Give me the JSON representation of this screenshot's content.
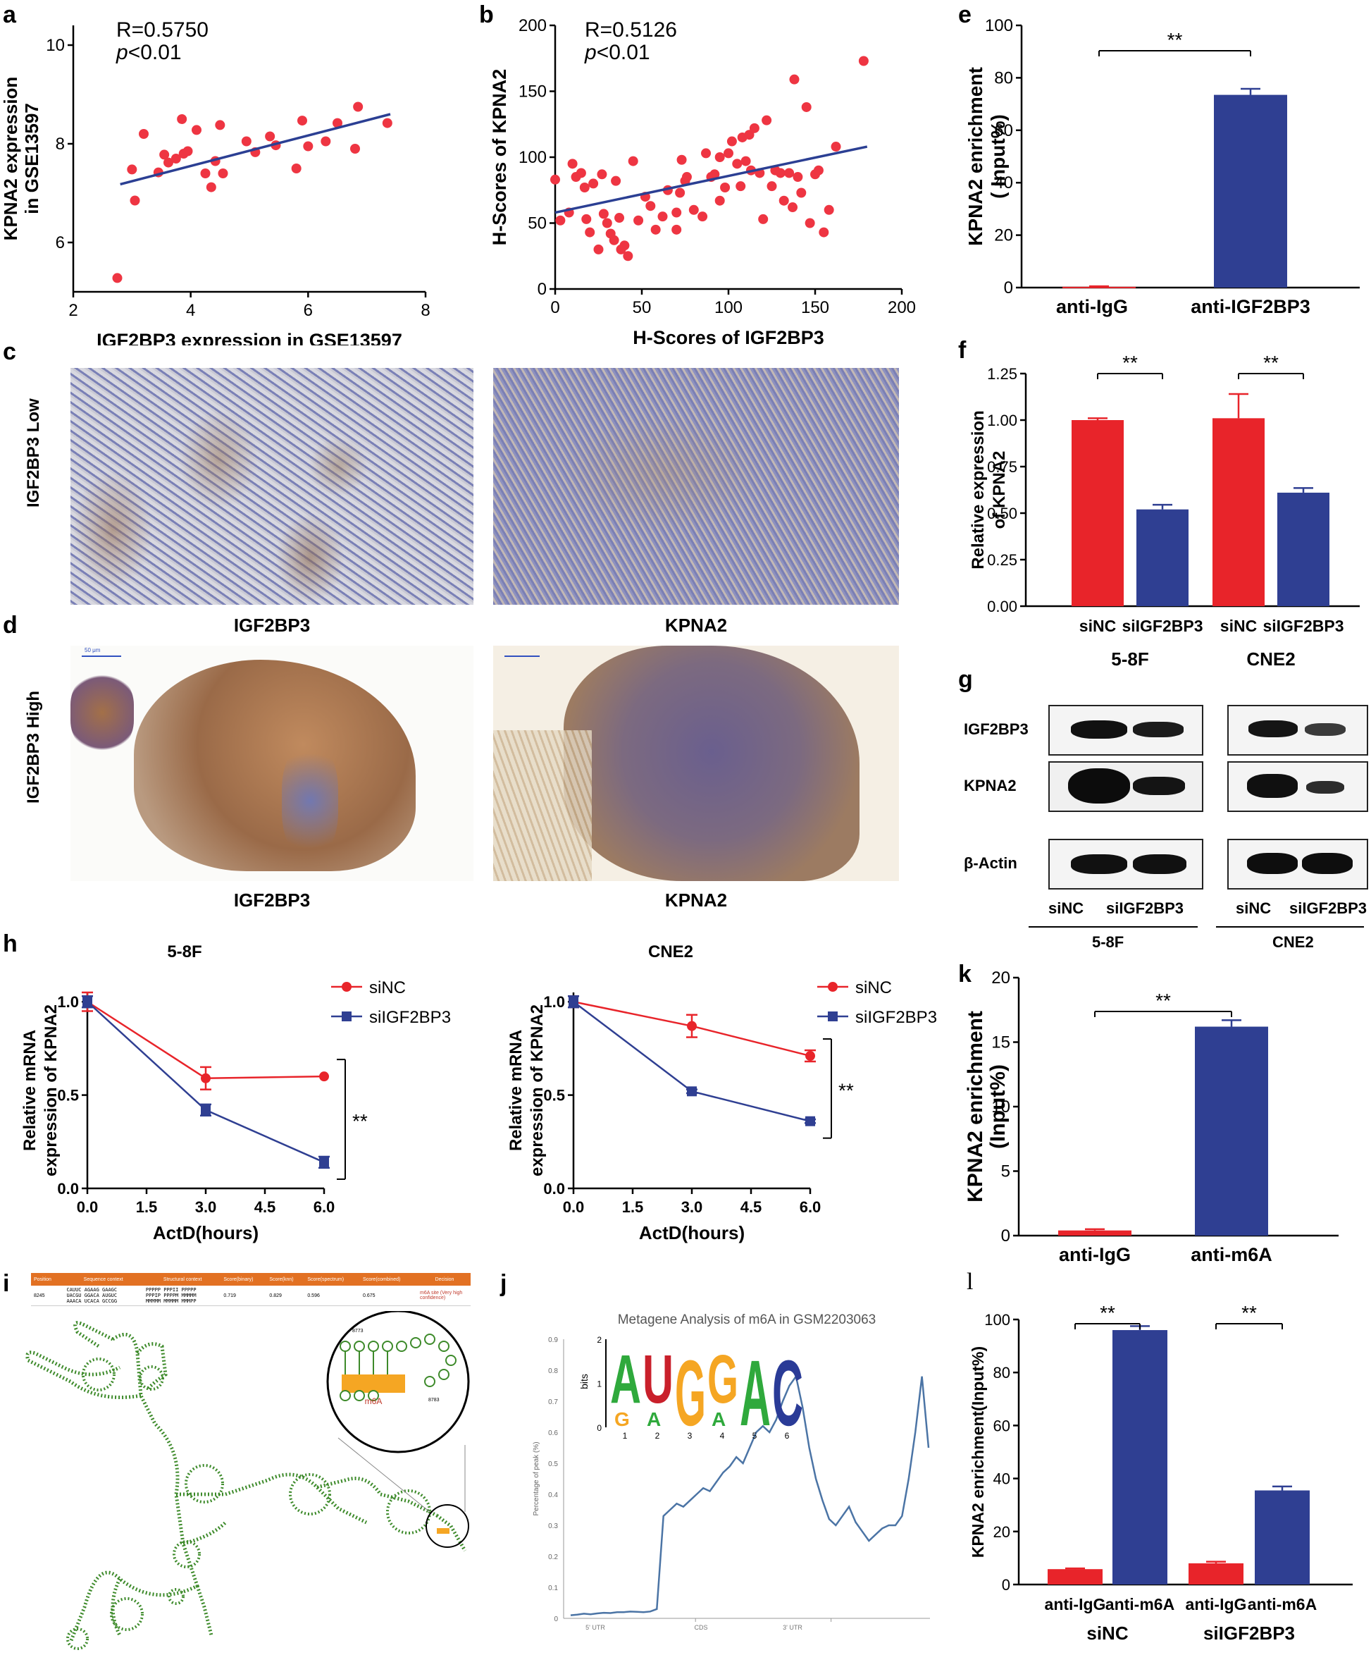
{
  "panels": {
    "a": "a",
    "b": "b",
    "c": "c",
    "d": "d",
    "e": "e",
    "f": "f",
    "g": "g",
    "h": "h",
    "i": "i",
    "j": "j",
    "k": "k",
    "l": "l"
  },
  "colors": {
    "red": "#e8242a",
    "blue": "#2f3f92",
    "dot_red": "#ee3542",
    "line_blue": "#2b3f93",
    "meta_line": "#4b74a5",
    "rna_green": "#3d8a2a"
  },
  "chart_data": [
    {
      "id": "a",
      "type": "scatter",
      "stat_r": "R=0.5750",
      "stat_p_italic": "p",
      "stat_p_rest": "<0.01",
      "xlabel": "IGF2BP3 expression in GSE13597",
      "ylabel_line1": "KPNA2 expression",
      "ylabel_line2": "in GSE13597",
      "xlim": [
        2,
        8
      ],
      "ylim": [
        5.0,
        10.4
      ],
      "xticks": [
        "2",
        "4",
        "6",
        "8"
      ],
      "yticks": [
        "6",
        "8",
        "10"
      ],
      "fit": {
        "x0": 2.8,
        "y0": 7.18,
        "x1": 7.4,
        "y1": 8.6
      },
      "points": [
        [
          2.75,
          5.28
        ],
        [
          3.0,
          7.48
        ],
        [
          3.05,
          6.85
        ],
        [
          3.2,
          8.2
        ],
        [
          3.45,
          7.42
        ],
        [
          3.55,
          7.78
        ],
        [
          3.62,
          7.62
        ],
        [
          3.75,
          7.7
        ],
        [
          3.85,
          8.5
        ],
        [
          3.88,
          7.8
        ],
        [
          3.95,
          7.85
        ],
        [
          4.1,
          8.28
        ],
        [
          4.25,
          7.4
        ],
        [
          4.35,
          7.12
        ],
        [
          4.42,
          7.65
        ],
        [
          4.5,
          8.38
        ],
        [
          4.55,
          7.4
        ],
        [
          4.95,
          8.05
        ],
        [
          5.1,
          7.83
        ],
        [
          5.35,
          8.15
        ],
        [
          5.45,
          7.97
        ],
        [
          5.8,
          7.5
        ],
        [
          5.9,
          8.47
        ],
        [
          6.0,
          7.95
        ],
        [
          6.3,
          8.05
        ],
        [
          6.5,
          8.42
        ],
        [
          6.8,
          7.9
        ],
        [
          6.85,
          8.75
        ],
        [
          7.35,
          8.42
        ]
      ]
    },
    {
      "id": "b",
      "type": "scatter",
      "stat_r": "R=0.5126",
      "stat_p_italic": "p",
      "stat_p_rest": "<0.01",
      "xlabel": "H-Scores of IGF2BP3",
      "ylabel_line1": "H-Scores of KPNA2",
      "ylabel_line2": "",
      "xlim": [
        0,
        200
      ],
      "ylim": [
        0,
        200
      ],
      "xticks": [
        "0",
        "50",
        "100",
        "150",
        "200"
      ],
      "yticks": [
        "0",
        "50",
        "100",
        "150",
        "200"
      ],
      "fit": {
        "x0": 0,
        "y0": 58,
        "x1": 180,
        "y1": 108
      },
      "points": [
        [
          0,
          83
        ],
        [
          3,
          52
        ],
        [
          8,
          58
        ],
        [
          10,
          95
        ],
        [
          12,
          85
        ],
        [
          15,
          88
        ],
        [
          17,
          77
        ],
        [
          18,
          53
        ],
        [
          20,
          43
        ],
        [
          22,
          80
        ],
        [
          25,
          30
        ],
        [
          27,
          87
        ],
        [
          28,
          57
        ],
        [
          30,
          50
        ],
        [
          32,
          42
        ],
        [
          34,
          37
        ],
        [
          35,
          82
        ],
        [
          37,
          54
        ],
        [
          38,
          30
        ],
        [
          40,
          33
        ],
        [
          42,
          25
        ],
        [
          45,
          97
        ],
        [
          48,
          52
        ],
        [
          52,
          70
        ],
        [
          55,
          63
        ],
        [
          58,
          45
        ],
        [
          62,
          55
        ],
        [
          65,
          75
        ],
        [
          70,
          58
        ],
        [
          70,
          45
        ],
        [
          72,
          73
        ],
        [
          73,
          98
        ],
        [
          75,
          82
        ],
        [
          76,
          85
        ],
        [
          80,
          60
        ],
        [
          85,
          55
        ],
        [
          87,
          103
        ],
        [
          90,
          85
        ],
        [
          92,
          87
        ],
        [
          95,
          100
        ],
        [
          95,
          67
        ],
        [
          98,
          77
        ],
        [
          100,
          103
        ],
        [
          102,
          112
        ],
        [
          105,
          95
        ],
        [
          107,
          78
        ],
        [
          108,
          115
        ],
        [
          110,
          97
        ],
        [
          112,
          117
        ],
        [
          113,
          90
        ],
        [
          115,
          122
        ],
        [
          118,
          88
        ],
        [
          120,
          53
        ],
        [
          122,
          128
        ],
        [
          125,
          78
        ],
        [
          127,
          90
        ],
        [
          130,
          88
        ],
        [
          132,
          67
        ],
        [
          135,
          88
        ],
        [
          137,
          62
        ],
        [
          138,
          159
        ],
        [
          140,
          85
        ],
        [
          142,
          73
        ],
        [
          145,
          138
        ],
        [
          147,
          50
        ],
        [
          150,
          87
        ],
        [
          152,
          90
        ],
        [
          155,
          43
        ],
        [
          158,
          60
        ],
        [
          162,
          108
        ],
        [
          178,
          173
        ]
      ]
    },
    {
      "id": "e",
      "type": "bar",
      "ylabel_line1": "KPNA2 enrichment",
      "ylabel_line2": "( Input%)",
      "ylim": [
        0,
        100
      ],
      "yticks": [
        "0",
        "20",
        "40",
        "60",
        "80",
        "100"
      ],
      "categories": [
        "anti-IgG",
        "anti-IGF2BP3"
      ],
      "values": [
        0.3,
        73.5
      ],
      "errors": [
        0.2,
        2.3
      ],
      "sig": "**"
    },
    {
      "id": "f",
      "type": "bar",
      "ylabel_line1": "Relative expression",
      "ylabel_line2": "of KPNA2",
      "ylim": [
        0,
        1.25
      ],
      "yticks": [
        "0.00",
        "0.25",
        "0.50",
        "0.75",
        "1.00",
        "1.25"
      ],
      "categories": [
        "siNC",
        "siIGF2BP3",
        "siNC",
        "siIGF2BP3"
      ],
      "groups": [
        "5-8F",
        "CNE2"
      ],
      "values": [
        1.0,
        0.52,
        1.01,
        0.61
      ],
      "errors": [
        0.01,
        0.025,
        0.13,
        0.025
      ],
      "sig": [
        "**",
        "**"
      ]
    },
    {
      "id": "h1",
      "type": "line",
      "title": "5-8F",
      "xlabel": "ActD(hours)",
      "ylabel_line1": "Relative mRNA",
      "ylabel_line2": "expression of KPNA2",
      "xlim": [
        0,
        6
      ],
      "ylim": [
        0,
        1.05
      ],
      "xticks": [
        "0.0",
        "1.5",
        "3.0",
        "4.5",
        "6.0"
      ],
      "yticks": [
        "0.0",
        "0.5",
        "1.0"
      ],
      "x": [
        0,
        3,
        6
      ],
      "series": [
        {
          "name": "siNC",
          "values": [
            1.0,
            0.59,
            0.6
          ],
          "errors": [
            0.05,
            0.06,
            0.0
          ]
        },
        {
          "name": "siIGF2BP3",
          "values": [
            1.0,
            0.42,
            0.14
          ],
          "errors": [
            0.03,
            0.03,
            0.03
          ]
        }
      ],
      "sig": "**"
    },
    {
      "id": "h2",
      "type": "line",
      "title": "CNE2",
      "xlabel": "ActD(hours)",
      "ylabel_line1": "Relative mRNA",
      "ylabel_line2": "expression of KPNA2",
      "xlim": [
        0,
        6
      ],
      "ylim": [
        0,
        1.05
      ],
      "xticks": [
        "0.0",
        "1.5",
        "3.0",
        "4.5",
        "6.0"
      ],
      "yticks": [
        "0.0",
        "0.5",
        "1.0"
      ],
      "x": [
        0,
        3,
        6
      ],
      "series": [
        {
          "name": "siNC",
          "values": [
            1.0,
            0.87,
            0.71
          ],
          "errors": [
            0.03,
            0.06,
            0.03
          ]
        },
        {
          "name": "siIGF2BP3",
          "values": [
            1.0,
            0.52,
            0.36
          ],
          "errors": [
            0.03,
            0.01,
            0.01
          ]
        }
      ],
      "sig": "**"
    },
    {
      "id": "k",
      "type": "bar",
      "ylabel_line1": "KPNA2 enrichment",
      "ylabel_line2": "(Input%)",
      "ylim": [
        0,
        20
      ],
      "yticks": [
        "0",
        "5",
        "10",
        "15",
        "20"
      ],
      "categories": [
        "anti-IgG",
        "anti-m6A"
      ],
      "values": [
        0.4,
        16.2
      ],
      "errors": [
        0.1,
        0.5
      ],
      "sig": "**"
    },
    {
      "id": "l",
      "type": "bar",
      "ylabel_line1": "KPNA2 enrichment(Input%)",
      "ylabel_line2": "",
      "ylim": [
        0,
        100
      ],
      "yticks": [
        "0",
        "20",
        "40",
        "60",
        "80",
        "100"
      ],
      "categories": [
        "anti-IgG",
        "anti-m6A",
        "anti-IgG",
        "anti-m6A"
      ],
      "groups": [
        "siNC",
        "siIGF2BP3"
      ],
      "values": [
        5.8,
        96.0,
        8.0,
        35.5
      ],
      "errors": [
        0.3,
        1.5,
        0.6,
        1.5
      ],
      "sig": [
        "**",
        "**"
      ]
    },
    {
      "id": "j",
      "type": "line",
      "title": "Metagene Analysis of m6A in GSM2203063",
      "ylabel": "Percentage of peak (%)",
      "ylim": [
        0,
        0.9
      ],
      "yticks": [
        "0",
        "0.1",
        "0.2",
        "0.3",
        "0.4",
        "0.5",
        "0.6",
        "0.7",
        "0.8",
        "0.9"
      ],
      "regions": [
        "5' UTR",
        "CDS",
        "3' UTR"
      ],
      "motif": [
        "A",
        "U",
        "G",
        "G",
        "A",
        "C"
      ],
      "motif_minor": [
        "G",
        "A",
        "",
        "A",
        "",
        ""
      ],
      "motif_axis": "bits",
      "motif_positions": [
        "1",
        "2",
        "3",
        "4",
        "5",
        "6"
      ],
      "motif_yticks": [
        "0",
        "1",
        "2"
      ],
      "profile": [
        0.01,
        0.012,
        0.015,
        0.013,
        0.016,
        0.018,
        0.017,
        0.02,
        0.02,
        0.022,
        0.021,
        0.02,
        0.022,
        0.03,
        0.33,
        0.35,
        0.37,
        0.36,
        0.38,
        0.4,
        0.42,
        0.41,
        0.44,
        0.47,
        0.49,
        0.52,
        0.5,
        0.55,
        0.6,
        0.62,
        0.6,
        0.64,
        0.7,
        0.75,
        0.78,
        0.68,
        0.55,
        0.45,
        0.38,
        0.32,
        0.3,
        0.33,
        0.36,
        0.31,
        0.28,
        0.25,
        0.27,
        0.29,
        0.3,
        0.3,
        0.33,
        0.45,
        0.6,
        0.78,
        0.55
      ]
    }
  ],
  "panel_c": {
    "row_label": "IGF2BP3 Low",
    "captions": [
      "IGF2BP3",
      "KPNA2"
    ]
  },
  "panel_d": {
    "row_label": "IGF2BP3 High",
    "captions": [
      "IGF2BP3",
      "KPNA2"
    ],
    "scale": "50 μm"
  },
  "panel_g": {
    "rows": [
      "IGF2BP3",
      "KPNA2",
      "β-Actin"
    ],
    "lanes": [
      "siNC",
      "siIGF2BP3"
    ],
    "groups": [
      "5-8F",
      "CNE2"
    ]
  },
  "panel_i": {
    "headers": [
      "Position",
      "Sequence context",
      "Structural context",
      "Score(binary)",
      "Score(knn)",
      "Score(spectrum)",
      "Score(combined)",
      "Decision"
    ],
    "row": {
      "position": "8245",
      "sequence": [
        "CAUUC AGAAG GAAGC",
        "UACGU GGACA AUGUC",
        "AAACA UCACA GCCGG"
      ],
      "structure": [
        "PPPPP PPPII PPPPP",
        "PPPIP PPPPM MMMMM",
        "MMMMM MMMMM MMMPP"
      ],
      "binary": "0.719",
      "knn": "0.829",
      "spectrum": "0.596",
      "combined": "0.675",
      "decision": "m6A site (Very high confidence)"
    },
    "zoom_label": "m6A",
    "zoom_pos_start": "8773",
    "zoom_pos_end": "8783"
  }
}
